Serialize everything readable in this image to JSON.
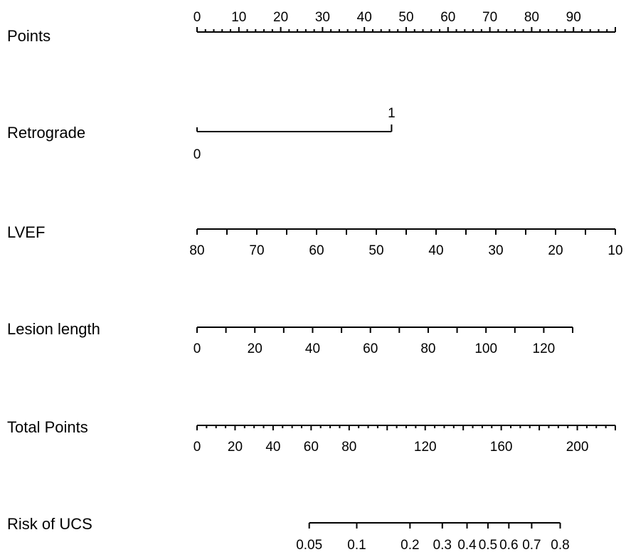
{
  "chart_data": {
    "type": "nomogram",
    "axes": [
      {
        "label": "Points",
        "ticks": [
          0,
          10,
          20,
          30,
          40,
          50,
          60,
          70,
          80,
          90
        ],
        "tick_labels": [
          "0",
          "10",
          "20",
          "30",
          "40",
          "50",
          "60",
          "70",
          "80",
          "90"
        ],
        "minor_step": 2,
        "range": [
          0,
          100
        ],
        "label_position": "above"
      },
      {
        "label": "Retrograde",
        "categories": [
          {
            "label": "0",
            "points": 0
          },
          {
            "label": "1",
            "points": 46.5
          }
        ]
      },
      {
        "label": "LVEF",
        "ticks": [
          80,
          75,
          70,
          65,
          60,
          55,
          50,
          45,
          40,
          35,
          30,
          25,
          20,
          15,
          10
        ],
        "tick_labels": [
          "80",
          "70",
          "60",
          "50",
          "40",
          "30",
          "20",
          "10"
        ],
        "labeled_values": [
          80,
          70,
          60,
          50,
          40,
          30,
          20,
          10
        ],
        "value_range": [
          80,
          10
        ],
        "points_range": [
          0,
          100
        ],
        "label_position": "below"
      },
      {
        "label": "Lesion length",
        "ticks": [
          0,
          10,
          20,
          30,
          40,
          50,
          60,
          70,
          80,
          90,
          100,
          110,
          120
        ],
        "tick_labels": [
          "0",
          "20",
          "40",
          "60",
          "80",
          "100",
          "120"
        ],
        "labeled_values": [
          0,
          20,
          40,
          60,
          80,
          100,
          120
        ],
        "value_range": [
          0,
          130
        ],
        "points_range": [
          0,
          89.8
        ],
        "label_position": "below"
      },
      {
        "label": "Total Points",
        "ticks_minor_step": 5,
        "tick_labels": [
          "0",
          "20",
          "40",
          "60",
          "80",
          "120",
          "160",
          "200"
        ],
        "labeled_values": [
          0,
          20,
          40,
          60,
          80,
          120,
          160,
          200
        ],
        "value_range": [
          0,
          220
        ],
        "label_position": "below"
      },
      {
        "label": "Risk of UCS",
        "tick_labels": [
          "0.05",
          "0.1",
          "0.2",
          "0.3",
          "0.4",
          "0.5",
          "0.6",
          "0.7",
          "0.8"
        ],
        "labeled_values": [
          0.05,
          0.1,
          0.2,
          0.3,
          0.4,
          0.5,
          0.6,
          0.7,
          0.8
        ],
        "total_points_at_values": [
          59,
          84,
          112,
          129,
          142,
          153,
          164,
          176,
          191
        ],
        "label_position": "below"
      }
    ]
  }
}
